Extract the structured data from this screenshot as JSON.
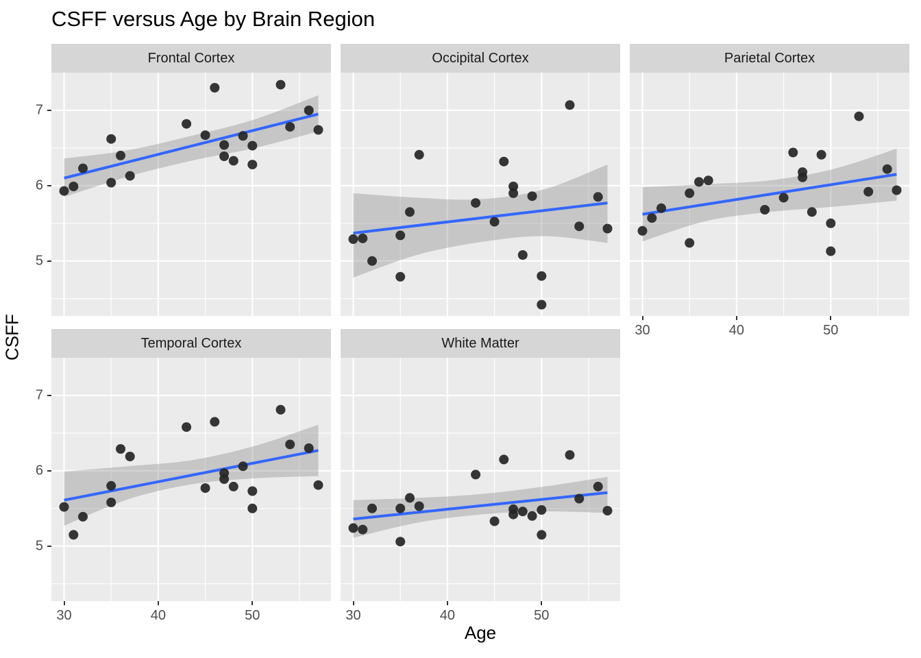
{
  "title": "CSFF versus Age by Brain Region",
  "axis_titles": {
    "x": "Age",
    "y": "CSFF"
  },
  "colors": {
    "background": "#FFFFFF",
    "panel_background": "#EBEBEB",
    "strip_background": "#D6D6D6",
    "grid_line": "#FFFFFF",
    "point": "#252525",
    "smooth_line": "#3366FF",
    "ribbon": "#808080",
    "ribbon_opacity": 0.35,
    "tick_label": "#4D4D4D",
    "tick_mark": "#333333",
    "title": "#000000"
  },
  "chart_data": {
    "type": "scatter",
    "title": "CSFF versus Age by Brain Region",
    "xlabel": "Age",
    "ylabel": "CSFF",
    "facet_by": "Brain Region",
    "legend": "none",
    "grid": "on",
    "smooth": "linear fit with 95% CI ribbon",
    "xlim": [
      28.65,
      58.35
    ],
    "ylim": [
      4.27,
      7.5
    ],
    "x_ticks": [
      30,
      40,
      50
    ],
    "x_minor_ticks": [
      35,
      45,
      55
    ],
    "y_ticks": [
      5,
      6,
      7
    ],
    "y_minor_ticks": [
      4.5,
      5.5,
      6.5
    ],
    "facets": [
      {
        "label": "Frontal Cortex",
        "row": 0,
        "col": 0,
        "points": [
          [
            30,
            5.93
          ],
          [
            31,
            5.99
          ],
          [
            32,
            6.23
          ],
          [
            35,
            6.62
          ],
          [
            35,
            6.04
          ],
          [
            36,
            6.4
          ],
          [
            37,
            6.13
          ],
          [
            43,
            6.82
          ],
          [
            45,
            6.67
          ],
          [
            46,
            7.3
          ],
          [
            47,
            6.54
          ],
          [
            47,
            6.39
          ],
          [
            48,
            6.33
          ],
          [
            49,
            6.66
          ],
          [
            50,
            6.53
          ],
          [
            50,
            6.28
          ],
          [
            53,
            7.34
          ],
          [
            54,
            6.78
          ],
          [
            56,
            7.0
          ],
          [
            57,
            6.74
          ]
        ],
        "trend": {
          "x": [
            30,
            57
          ],
          "y": [
            6.1,
            6.95
          ]
        },
        "ribbon": {
          "x": [
            30,
            36.75,
            43.5,
            50.25,
            57
          ],
          "lower": [
            5.85,
            6.12,
            6.33,
            6.5,
            6.72
          ],
          "upper": [
            6.36,
            6.47,
            6.66,
            6.88,
            7.2
          ]
        }
      },
      {
        "label": "Occipital Cortex",
        "row": 0,
        "col": 1,
        "points": [
          [
            30,
            5.29
          ],
          [
            31,
            5.3
          ],
          [
            32,
            5.0
          ],
          [
            35,
            5.34
          ],
          [
            35,
            4.79
          ],
          [
            36,
            5.65
          ],
          [
            37,
            6.41
          ],
          [
            43,
            5.77
          ],
          [
            45,
            5.52
          ],
          [
            46,
            6.32
          ],
          [
            47,
            5.99
          ],
          [
            47,
            5.9
          ],
          [
            48,
            5.08
          ],
          [
            49,
            5.86
          ],
          [
            50,
            4.8
          ],
          [
            50,
            4.42
          ],
          [
            53,
            7.07
          ],
          [
            54,
            5.46
          ],
          [
            56,
            5.85
          ],
          [
            57,
            5.43
          ]
        ],
        "trend": {
          "x": [
            30,
            57
          ],
          "y": [
            5.37,
            5.77
          ]
        },
        "ribbon": {
          "x": [
            30,
            36.75,
            43.5,
            50.25,
            57
          ],
          "lower": [
            4.78,
            5.08,
            5.25,
            5.33,
            5.24
          ],
          "upper": [
            5.9,
            5.84,
            5.82,
            5.95,
            6.28
          ]
        }
      },
      {
        "label": "Parietal Cortex",
        "row": 0,
        "col": 2,
        "points": [
          [
            30,
            5.4
          ],
          [
            31,
            5.57
          ],
          [
            32,
            5.7
          ],
          [
            35,
            5.9
          ],
          [
            35,
            5.24
          ],
          [
            36,
            6.05
          ],
          [
            37,
            6.07
          ],
          [
            43,
            5.68
          ],
          [
            45,
            5.84
          ],
          [
            46,
            6.44
          ],
          [
            47,
            6.18
          ],
          [
            47,
            6.11
          ],
          [
            48,
            5.65
          ],
          [
            49,
            6.41
          ],
          [
            50,
            5.5
          ],
          [
            50,
            5.13
          ],
          [
            53,
            6.92
          ],
          [
            54,
            5.92
          ],
          [
            56,
            6.22
          ],
          [
            57,
            5.94
          ]
        ],
        "trend": {
          "x": [
            30,
            57
          ],
          "y": [
            5.62,
            6.15
          ]
        },
        "ribbon": {
          "x": [
            30,
            36.75,
            43.5,
            50.25,
            57
          ],
          "lower": [
            5.26,
            5.53,
            5.65,
            5.72,
            5.8
          ],
          "upper": [
            5.98,
            6.02,
            6.07,
            6.22,
            6.49
          ]
        }
      },
      {
        "label": "Temporal Cortex",
        "row": 1,
        "col": 0,
        "points": [
          [
            30,
            5.52
          ],
          [
            31,
            5.15
          ],
          [
            32,
            5.39
          ],
          [
            35,
            5.8
          ],
          [
            35,
            5.58
          ],
          [
            36,
            6.29
          ],
          [
            37,
            6.19
          ],
          [
            43,
            6.58
          ],
          [
            45,
            5.77
          ],
          [
            46,
            6.65
          ],
          [
            47,
            5.97
          ],
          [
            47,
            5.89
          ],
          [
            48,
            5.79
          ],
          [
            49,
            6.06
          ],
          [
            50,
            5.73
          ],
          [
            50,
            5.5
          ],
          [
            53,
            6.81
          ],
          [
            54,
            6.35
          ],
          [
            56,
            6.3
          ],
          [
            57,
            5.81
          ]
        ],
        "trend": {
          "x": [
            30,
            57
          ],
          "y": [
            5.61,
            6.27
          ]
        },
        "ribbon": {
          "x": [
            30,
            36.75,
            43.5,
            50.25,
            57
          ],
          "lower": [
            5.27,
            5.62,
            5.82,
            5.9,
            5.93
          ],
          "upper": [
            5.99,
            6.06,
            6.14,
            6.33,
            6.61
          ]
        }
      },
      {
        "label": "White Matter",
        "row": 1,
        "col": 1,
        "points": [
          [
            30,
            5.24
          ],
          [
            31,
            5.22
          ],
          [
            32,
            5.5
          ],
          [
            35,
            5.5
          ],
          [
            35,
            5.06
          ],
          [
            36,
            5.64
          ],
          [
            37,
            5.53
          ],
          [
            43,
            5.95
          ],
          [
            45,
            5.33
          ],
          [
            46,
            6.15
          ],
          [
            47,
            5.49
          ],
          [
            47,
            5.42
          ],
          [
            48,
            5.46
          ],
          [
            49,
            5.4
          ],
          [
            50,
            5.48
          ],
          [
            50,
            5.15
          ],
          [
            53,
            6.21
          ],
          [
            54,
            5.63
          ],
          [
            56,
            5.79
          ],
          [
            57,
            5.47
          ]
        ],
        "trend": {
          "x": [
            30,
            57
          ],
          "y": [
            5.36,
            5.71
          ]
        },
        "ribbon": {
          "x": [
            30,
            36.75,
            43.5,
            50.25,
            57
          ],
          "lower": [
            5.11,
            5.31,
            5.42,
            5.46,
            5.44
          ],
          "upper": [
            5.61,
            5.64,
            5.69,
            5.79,
            5.92
          ]
        }
      }
    ]
  }
}
